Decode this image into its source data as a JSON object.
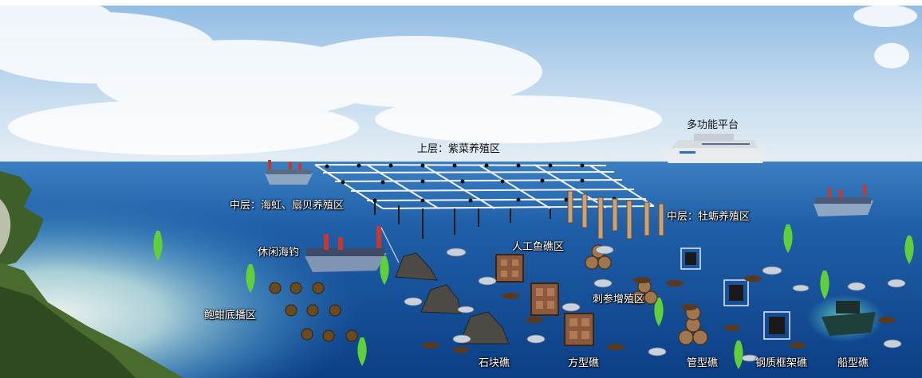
{
  "labels": {
    "platform": "多功能平台",
    "upper_layer": "上层：紫菜养殖区",
    "middle_layer_left": "中层：海虹、扇贝养殖区",
    "middle_layer_right": "中层：牡蛎养殖区",
    "leisure_fishing": "休闲海钓",
    "artificial_reef_area": "人工鱼礁区",
    "sea_cucumber_area": "刺参增殖区",
    "abalone_area": "鲍蚶底播区",
    "stone_reef": "石块礁",
    "square_reef": "方型礁",
    "pipe_reef": "管型礁",
    "steel_frame_reef": "钢质框架礁",
    "ship_reef": "船型礁"
  },
  "colors": {
    "sky_top": "#9fc4e6",
    "sea_surface": "#2a6fb3",
    "sea_deep": "#0a3f8a",
    "sand": "#c9d8d0",
    "island_green": "#3f5f2a"
  }
}
